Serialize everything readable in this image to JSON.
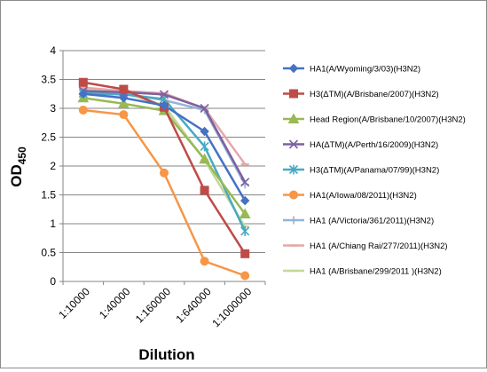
{
  "chart_data": {
    "type": "line",
    "title": "",
    "xlabel": "Dilution",
    "ylabel": "OD",
    "ylabel_sub": "450",
    "categories": [
      "1:10000",
      "1:40000",
      "1:160000",
      "1:640000",
      "1:1000000"
    ],
    "ylim": [
      0,
      4
    ],
    "yticks": [
      "0",
      "0.5",
      "1",
      "1.5",
      "2",
      "2.5",
      "3",
      "3.5",
      "4"
    ],
    "grid": true,
    "legend_position": "right",
    "series": [
      {
        "name": "HA1(A/Wyoming/3/03)(H3N2)",
        "color": "#4472C4",
        "marker": "diamond",
        "values": [
          3.25,
          3.18,
          3.05,
          2.6,
          1.4
        ]
      },
      {
        "name": "H3(ΔTM)(A/Brisbane/2007)(H3N2)",
        "color": "#BE4B48",
        "marker": "square",
        "values": [
          3.45,
          3.33,
          3.02,
          1.58,
          0.48
        ]
      },
      {
        "name": "Head Region(A/Brisbane/10/2007)(H3N2)",
        "color": "#98B954",
        "marker": "triangle",
        "values": [
          3.18,
          3.08,
          2.96,
          2.12,
          1.17
        ]
      },
      {
        "name": "HA(ΔTM)(A/Perth/16/2009)(H3N2)",
        "color": "#7D60A0",
        "marker": "x",
        "values": [
          3.3,
          3.28,
          3.24,
          3.0,
          1.72
        ]
      },
      {
        "name": "H3(ΔTM)(A/Panama/07/99)(H3N2)",
        "color": "#46AAC5",
        "marker": "star",
        "values": [
          3.26,
          3.24,
          3.16,
          2.34,
          0.87
        ]
      },
      {
        "name": "HA1(A/Iowa/08/2011)(H3N2)",
        "color": "#F79646",
        "marker": "circle",
        "values": [
          2.97,
          2.89,
          1.88,
          0.35,
          0.1
        ]
      },
      {
        "name": "HA1 (A/Victoria/361/2011)(H3N2)",
        "color": "#95B3D7",
        "marker": "plus",
        "values": [
          3.28,
          3.26,
          3.14,
          2.97,
          1.68
        ]
      },
      {
        "name": "HA1 (A/Chiang Rai/277/2011)(H3N2)",
        "color": "#E6A8A7",
        "marker": "dash",
        "values": [
          3.36,
          3.3,
          3.26,
          3.0,
          2.03
        ]
      },
      {
        "name": "HA1 (A/Brisbane/299/2011 )(H3N2)",
        "color": "#C4D79B",
        "marker": "dash",
        "values": [
          3.35,
          3.27,
          3.05,
          2.1,
          0.95
        ]
      }
    ]
  }
}
